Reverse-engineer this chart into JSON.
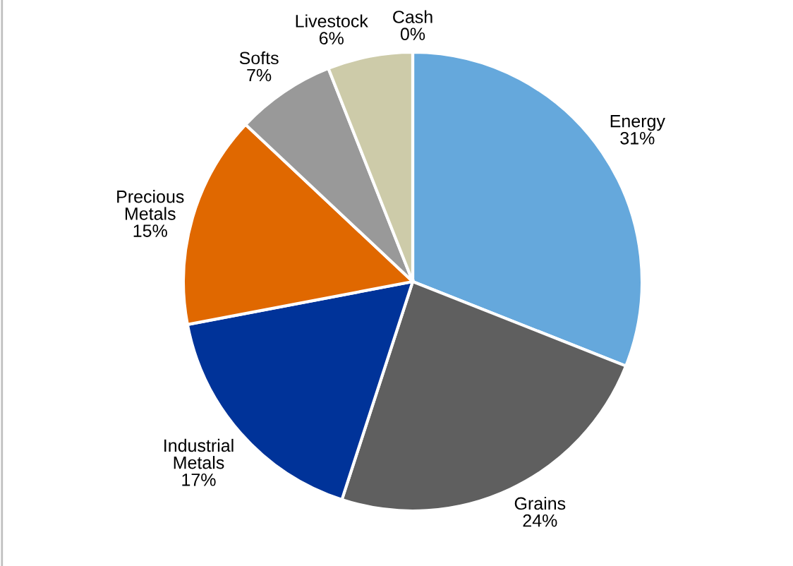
{
  "chart_data": {
    "type": "pie",
    "categories": [
      "Energy",
      "Grains",
      "Industrial\nMetals",
      "Precious\nMetals",
      "Softs",
      "Livestock",
      "Cash"
    ],
    "values": [
      31,
      24,
      17,
      15,
      7,
      6,
      0
    ],
    "colors": [
      "#65a8dc",
      "#5f5f5f",
      "#003399",
      "#e06800",
      "#999999",
      "#cdcba9",
      null
    ],
    "value_labels": [
      "31%",
      "24%",
      "17%",
      "15%",
      "7%",
      "6%",
      "0%"
    ]
  }
}
